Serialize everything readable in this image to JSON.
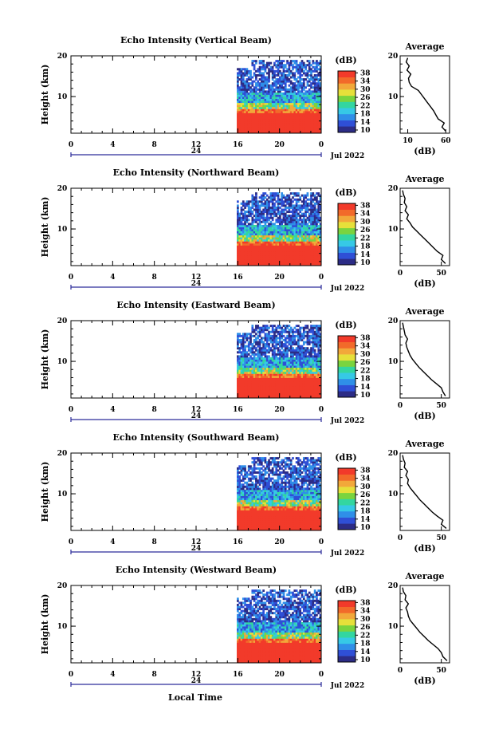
{
  "figure": {
    "xlabel": "Local Time",
    "date_label": "Jul 2022",
    "day_label": "24",
    "ylabel": "Height (km)",
    "colorbar_unit": "(dB)",
    "avg_title": "Average",
    "avg_xlabel": "(dB)"
  },
  "chart_data": [
    {
      "type": "heatmap",
      "title": "Echo Intensity (Vertical Beam)",
      "xlabel": "",
      "ylabel": "Height (km)",
      "x_ticks": [
        "0",
        "4",
        "8",
        "12",
        "16",
        "20",
        "0"
      ],
      "xlim": [
        0,
        24
      ],
      "y_ticks": [
        "20",
        "10"
      ],
      "ylim": [
        1,
        20
      ],
      "data_start_hour": 15.9,
      "colorbar": {
        "label": "(dB)",
        "ticks": [
          "38",
          "34",
          "30",
          "26",
          "22",
          "18",
          "14",
          "10"
        ],
        "range": [
          10,
          38
        ],
        "colors": [
          "#2c2c86",
          "#2f4fd6",
          "#2f8fe8",
          "#36c9e6",
          "#33d6a0",
          "#7ad43e",
          "#e6e03a",
          "#f2a83a",
          "#f26a2a",
          "#f23a2a"
        ]
      },
      "average_profile": {
        "type": "line",
        "title": "Average",
        "xlabel": "(dB)",
        "x_ticks": [
          "10",
          "60"
        ],
        "xlim": [
          0,
          65
        ],
        "y_ticks": [
          "20",
          "10"
        ],
        "ylim": [
          1,
          20
        ],
        "height_km": [
          1.5,
          2.5,
          3.5,
          4.5,
          5.5,
          6.5,
          7.5,
          8.5,
          9.5,
          10.5,
          11.5,
          12.5,
          13.5,
          14.5,
          15.5,
          16.5,
          17.5,
          18.5,
          19.5
        ],
        "db": [
          60,
          55,
          58,
          50,
          47,
          44,
          40,
          36,
          32,
          28,
          24,
          15,
          12,
          11,
          14,
          9,
          12,
          8,
          10
        ]
      }
    },
    {
      "type": "heatmap",
      "title": "Echo Intensity (Northward Beam)",
      "xlabel": "",
      "ylabel": "Height (km)",
      "x_ticks": [
        "0",
        "4",
        "8",
        "12",
        "16",
        "20",
        "0"
      ],
      "xlim": [
        0,
        24
      ],
      "y_ticks": [
        "20",
        "10"
      ],
      "ylim": [
        1,
        20
      ],
      "data_start_hour": 15.9,
      "colorbar": {
        "label": "(dB)",
        "ticks": [
          "38",
          "34",
          "30",
          "26",
          "22",
          "18",
          "14",
          "10"
        ],
        "range": [
          10,
          38
        ],
        "colors": [
          "#2c2c86",
          "#2f4fd6",
          "#2f8fe8",
          "#36c9e6",
          "#33d6a0",
          "#7ad43e",
          "#e6e03a",
          "#f2a83a",
          "#f26a2a",
          "#f23a2a"
        ]
      },
      "average_profile": {
        "type": "line",
        "title": "Average",
        "xlabel": "(dB)",
        "x_ticks": [
          "0",
          "50"
        ],
        "xlim": [
          0,
          60
        ],
        "y_ticks": [
          "20",
          "10"
        ],
        "ylim": [
          1,
          20
        ],
        "height_km": [
          1.5,
          2.5,
          3.5,
          4.5,
          5.5,
          6.5,
          7.5,
          8.5,
          9.5,
          10.5,
          11.5,
          12.5,
          13.5,
          14.5,
          15.5,
          16.5,
          17.5,
          18.5,
          19.5
        ],
        "db": [
          55,
          50,
          52,
          45,
          40,
          35,
          30,
          25,
          20,
          15,
          12,
          8,
          10,
          6,
          8,
          5,
          6,
          4,
          3
        ]
      }
    },
    {
      "type": "heatmap",
      "title": "Echo Intensity (Eastward Beam)",
      "xlabel": "",
      "ylabel": "Height (km)",
      "x_ticks": [
        "0",
        "4",
        "8",
        "12",
        "16",
        "20",
        "0"
      ],
      "xlim": [
        0,
        24
      ],
      "y_ticks": [
        "20",
        "10"
      ],
      "ylim": [
        1,
        20
      ],
      "data_start_hour": 15.9,
      "colorbar": {
        "label": "(dB)",
        "ticks": [
          "38",
          "34",
          "30",
          "26",
          "22",
          "18",
          "14",
          "10"
        ],
        "range": [
          10,
          38
        ],
        "colors": [
          "#2c2c86",
          "#2f4fd6",
          "#2f8fe8",
          "#36c9e6",
          "#33d6a0",
          "#7ad43e",
          "#e6e03a",
          "#f2a83a",
          "#f26a2a",
          "#f23a2a"
        ]
      },
      "average_profile": {
        "type": "line",
        "title": "Average",
        "xlabel": "(dB)",
        "x_ticks": [
          "0",
          "50"
        ],
        "xlim": [
          0,
          60
        ],
        "y_ticks": [
          "20",
          "10"
        ],
        "ylim": [
          1,
          20
        ],
        "height_km": [
          1.5,
          2.5,
          3.5,
          4.5,
          5.5,
          6.5,
          7.5,
          8.5,
          9.5,
          10.5,
          11.5,
          12.5,
          13.5,
          14.5,
          15.5,
          16.5,
          17.5,
          18.5,
          19.5
        ],
        "db": [
          55,
          52,
          50,
          44,
          38,
          33,
          28,
          23,
          19,
          15,
          12,
          10,
          8,
          7,
          9,
          6,
          5,
          4,
          3
        ]
      }
    },
    {
      "type": "heatmap",
      "title": "Echo Intensity (Southward Beam)",
      "xlabel": "",
      "ylabel": "Height (km)",
      "x_ticks": [
        "0",
        "4",
        "8",
        "12",
        "16",
        "20",
        "0"
      ],
      "xlim": [
        0,
        24
      ],
      "y_ticks": [
        "20",
        "10"
      ],
      "ylim": [
        1,
        20
      ],
      "data_start_hour": 15.9,
      "colorbar": {
        "label": "(dB)",
        "ticks": [
          "38",
          "34",
          "30",
          "26",
          "22",
          "18",
          "14",
          "10"
        ],
        "range": [
          10,
          38
        ],
        "colors": [
          "#2c2c86",
          "#2f4fd6",
          "#2f8fe8",
          "#36c9e6",
          "#33d6a0",
          "#7ad43e",
          "#e6e03a",
          "#f2a83a",
          "#f26a2a",
          "#f23a2a"
        ]
      },
      "average_profile": {
        "type": "line",
        "title": "Average",
        "xlabel": "(dB)",
        "x_ticks": [
          "0",
          "50"
        ],
        "xlim": [
          0,
          60
        ],
        "y_ticks": [
          "20",
          "10"
        ],
        "ylim": [
          1,
          20
        ],
        "height_km": [
          1.5,
          2.5,
          3.5,
          4.5,
          5.5,
          6.5,
          7.5,
          8.5,
          9.5,
          10.5,
          11.5,
          12.5,
          13.5,
          14.5,
          15.5,
          16.5,
          17.5,
          18.5,
          19.5
        ],
        "db": [
          56,
          50,
          52,
          45,
          39,
          34,
          29,
          24,
          20,
          16,
          12,
          9,
          10,
          7,
          9,
          5,
          6,
          4,
          3
        ]
      }
    },
    {
      "type": "heatmap",
      "title": "Echo Intensity (Westward Beam)",
      "xlabel": "Local Time",
      "ylabel": "Height (km)",
      "x_ticks": [
        "0",
        "4",
        "8",
        "12",
        "16",
        "20",
        "0"
      ],
      "xlim": [
        0,
        24
      ],
      "y_ticks": [
        "20",
        "10"
      ],
      "ylim": [
        1,
        20
      ],
      "data_start_hour": 15.9,
      "colorbar": {
        "label": "(dB)",
        "ticks": [
          "38",
          "34",
          "30",
          "26",
          "22",
          "18",
          "14",
          "10"
        ],
        "range": [
          10,
          38
        ],
        "colors": [
          "#2c2c86",
          "#2f4fd6",
          "#2f8fe8",
          "#36c9e6",
          "#33d6a0",
          "#7ad43e",
          "#e6e03a",
          "#f2a83a",
          "#f26a2a",
          "#f23a2a"
        ]
      },
      "average_profile": {
        "type": "line",
        "title": "Average",
        "xlabel": "(dB)",
        "x_ticks": [
          "0",
          "50"
        ],
        "xlim": [
          0,
          60
        ],
        "y_ticks": [
          "20",
          "10"
        ],
        "ylim": [
          1,
          20
        ],
        "height_km": [
          1.5,
          2.5,
          3.5,
          4.5,
          5.5,
          6.5,
          7.5,
          8.5,
          9.5,
          10.5,
          11.5,
          12.5,
          13.5,
          14.5,
          15.5,
          16.5,
          17.5,
          18.5,
          19.5
        ],
        "db": [
          57,
          52,
          50,
          46,
          40,
          34,
          29,
          24,
          20,
          16,
          12,
          10,
          9,
          7,
          10,
          6,
          7,
          4,
          3
        ]
      }
    }
  ]
}
